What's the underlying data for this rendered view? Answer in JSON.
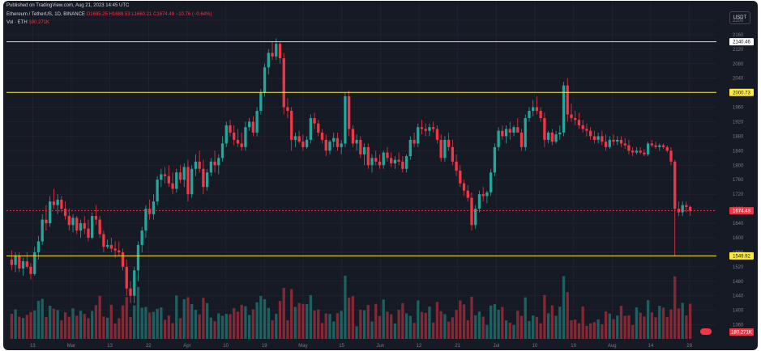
{
  "header": {
    "published": "Published on TradingView.com, Aug 21, 2023 14:45 UTC",
    "symbol": "Ethereum / TetherUS, 1D, BINANCE",
    "ohlc": "O1685.25 H1688.53 L1660.21 C1674.48 −10.76 (−0.64%)",
    "vol_label": "Vol · ETH",
    "vol_value": "180.271K"
  },
  "currency": "USDT",
  "colors": {
    "background": "#161a25",
    "up": "#26a69a",
    "down": "#f23645",
    "level_line_yellow": "#ffeb3b",
    "level_line_white": "#d1d4dc",
    "price_line": "#f23645",
    "grid": "#232632",
    "text": "#787b86"
  },
  "chart_data": {
    "type": "candlestick",
    "symbol": "Ethereum / TetherUS",
    "interval": "1D",
    "exchange": "BINANCE",
    "price_axis": {
      "ticks": [
        1360,
        1400,
        1440,
        1480,
        1520,
        1560,
        1600,
        1640,
        1680,
        1720,
        1760,
        1800,
        1840,
        1880,
        1920,
        1960,
        2000,
        2040,
        2080,
        2120,
        2160,
        2200
      ],
      "range": [
        1330,
        2220
      ]
    },
    "time_axis": {
      "labels": [
        "13",
        "Mar",
        "13",
        "22",
        "Apr",
        "10",
        "19",
        "May",
        "15",
        "Jun",
        "12",
        "21",
        "Jul",
        "10",
        "19",
        "Aug",
        "14",
        "28"
      ]
    },
    "horizontal_levels": [
      {
        "price": 2140.46,
        "label": "2140.46",
        "color": "white"
      },
      {
        "price": 2000.73,
        "label": "2000.73",
        "color": "yellow"
      },
      {
        "price": 1549.92,
        "label": "1549.92",
        "color": "yellow"
      }
    ],
    "last_price": {
      "value": 1674.48,
      "label": "1674.48"
    },
    "volume_last": {
      "label": "180.271K"
    },
    "grid": true,
    "candles": [
      [
        1540,
        1565,
        1510,
        1525
      ],
      [
        1525,
        1560,
        1505,
        1550
      ],
      [
        1550,
        1560,
        1505,
        1515
      ],
      [
        1515,
        1545,
        1495,
        1535
      ],
      [
        1535,
        1560,
        1515,
        1520
      ],
      [
        1520,
        1530,
        1485,
        1500
      ],
      [
        1500,
        1575,
        1495,
        1560
      ],
      [
        1560,
        1605,
        1540,
        1590
      ],
      [
        1590,
        1665,
        1580,
        1650
      ],
      [
        1650,
        1690,
        1620,
        1640
      ],
      [
        1640,
        1715,
        1630,
        1700
      ],
      [
        1700,
        1735,
        1680,
        1690
      ],
      [
        1690,
        1720,
        1665,
        1705
      ],
      [
        1705,
        1715,
        1670,
        1680
      ],
      [
        1680,
        1700,
        1650,
        1660
      ],
      [
        1660,
        1680,
        1620,
        1635
      ],
      [
        1635,
        1665,
        1615,
        1655
      ],
      [
        1655,
        1660,
        1610,
        1620
      ],
      [
        1620,
        1650,
        1600,
        1640
      ],
      [
        1640,
        1660,
        1610,
        1625
      ],
      [
        1625,
        1650,
        1590,
        1600
      ],
      [
        1600,
        1670,
        1595,
        1660
      ],
      [
        1660,
        1690,
        1635,
        1650
      ],
      [
        1650,
        1660,
        1600,
        1610
      ],
      [
        1610,
        1620,
        1560,
        1575
      ],
      [
        1575,
        1595,
        1570,
        1580
      ],
      [
        1580,
        1600,
        1560,
        1570
      ],
      [
        1570,
        1590,
        1545,
        1565
      ],
      [
        1565,
        1590,
        1550,
        1560
      ],
      [
        1560,
        1570,
        1510,
        1520
      ],
      [
        1520,
        1540,
        1440,
        1460
      ],
      [
        1460,
        1480,
        1420,
        1440
      ],
      [
        1440,
        1520,
        1420,
        1510
      ],
      [
        1510,
        1590,
        1480,
        1580
      ],
      [
        1580,
        1630,
        1560,
        1620
      ],
      [
        1620,
        1690,
        1600,
        1680
      ],
      [
        1680,
        1705,
        1650,
        1665
      ],
      [
        1665,
        1720,
        1650,
        1700
      ],
      [
        1700,
        1770,
        1690,
        1760
      ],
      [
        1760,
        1790,
        1740,
        1775
      ],
      [
        1775,
        1795,
        1750,
        1770
      ],
      [
        1770,
        1800,
        1740,
        1750
      ],
      [
        1750,
        1780,
        1720,
        1735
      ],
      [
        1735,
        1790,
        1725,
        1780
      ],
      [
        1780,
        1800,
        1750,
        1760
      ],
      [
        1760,
        1805,
        1740,
        1795
      ],
      [
        1795,
        1815,
        1700,
        1720
      ],
      [
        1720,
        1800,
        1710,
        1790
      ],
      [
        1790,
        1830,
        1770,
        1810
      ],
      [
        1810,
        1840,
        1780,
        1790
      ],
      [
        1790,
        1815,
        1720,
        1740
      ],
      [
        1740,
        1790,
        1730,
        1780
      ],
      [
        1780,
        1820,
        1770,
        1810
      ],
      [
        1810,
        1840,
        1780,
        1800
      ],
      [
        1800,
        1830,
        1775,
        1820
      ],
      [
        1820,
        1880,
        1810,
        1860
      ],
      [
        1860,
        1920,
        1850,
        1910
      ],
      [
        1910,
        1925,
        1880,
        1890
      ],
      [
        1890,
        1910,
        1855,
        1870
      ],
      [
        1870,
        1900,
        1850,
        1860
      ],
      [
        1860,
        1890,
        1840,
        1850
      ],
      [
        1850,
        1920,
        1840,
        1905
      ],
      [
        1905,
        1930,
        1895,
        1920
      ],
      [
        1920,
        1935,
        1880,
        1890
      ],
      [
        1890,
        1960,
        1880,
        1950
      ],
      [
        1950,
        2010,
        1940,
        2000
      ],
      [
        2000,
        2080,
        1990,
        2070
      ],
      [
        2070,
        2120,
        2050,
        2110
      ],
      [
        2110,
        2140,
        2090,
        2100
      ],
      [
        2100,
        2150,
        2090,
        2135
      ],
      [
        2135,
        2140,
        2080,
        2095
      ],
      [
        2095,
        2110,
        1940,
        1960
      ],
      [
        1960,
        1985,
        1930,
        1950
      ],
      [
        1950,
        1960,
        1840,
        1870
      ],
      [
        1870,
        1890,
        1850,
        1880
      ],
      [
        1880,
        1895,
        1860,
        1865
      ],
      [
        1865,
        1885,
        1840,
        1850
      ],
      [
        1850,
        1880,
        1845,
        1870
      ],
      [
        1870,
        1940,
        1860,
        1930
      ],
      [
        1930,
        1945,
        1900,
        1915
      ],
      [
        1915,
        1925,
        1880,
        1890
      ],
      [
        1890,
        1900,
        1860,
        1870
      ],
      [
        1870,
        1885,
        1825,
        1840
      ],
      [
        1840,
        1870,
        1830,
        1865
      ],
      [
        1865,
        1890,
        1850,
        1875
      ],
      [
        1875,
        1890,
        1840,
        1850
      ],
      [
        1850,
        1870,
        1830,
        1860
      ],
      [
        1860,
        2000,
        1850,
        1990
      ],
      [
        1990,
        2005,
        1880,
        1900
      ],
      [
        1900,
        1910,
        1850,
        1860
      ],
      [
        1860,
        1885,
        1840,
        1870
      ],
      [
        1870,
        1880,
        1820,
        1830
      ],
      [
        1830,
        1860,
        1800,
        1850
      ],
      [
        1850,
        1860,
        1790,
        1800
      ],
      [
        1800,
        1830,
        1780,
        1820
      ],
      [
        1820,
        1840,
        1800,
        1810
      ],
      [
        1810,
        1830,
        1790,
        1800
      ],
      [
        1800,
        1840,
        1790,
        1835
      ],
      [
        1835,
        1850,
        1810,
        1820
      ],
      [
        1820,
        1835,
        1795,
        1805
      ],
      [
        1805,
        1825,
        1790,
        1815
      ],
      [
        1815,
        1835,
        1800,
        1810
      ],
      [
        1810,
        1825,
        1780,
        1790
      ],
      [
        1790,
        1830,
        1780,
        1825
      ],
      [
        1825,
        1880,
        1815,
        1870
      ],
      [
        1870,
        1890,
        1850,
        1860
      ],
      [
        1860,
        1915,
        1850,
        1905
      ],
      [
        1905,
        1925,
        1885,
        1900
      ],
      [
        1900,
        1915,
        1880,
        1895
      ],
      [
        1895,
        1915,
        1880,
        1905
      ],
      [
        1905,
        1920,
        1890,
        1900
      ],
      [
        1900,
        1910,
        1860,
        1870
      ],
      [
        1870,
        1885,
        1810,
        1820
      ],
      [
        1820,
        1880,
        1810,
        1870
      ],
      [
        1870,
        1890,
        1840,
        1850
      ],
      [
        1850,
        1870,
        1800,
        1810
      ],
      [
        1810,
        1830,
        1770,
        1785
      ],
      [
        1785,
        1800,
        1740,
        1750
      ],
      [
        1750,
        1760,
        1715,
        1730
      ],
      [
        1730,
        1745,
        1700,
        1710
      ],
      [
        1710,
        1725,
        1620,
        1635
      ],
      [
        1635,
        1690,
        1625,
        1680
      ],
      [
        1680,
        1730,
        1670,
        1720
      ],
      [
        1720,
        1740,
        1700,
        1715
      ],
      [
        1715,
        1730,
        1695,
        1725
      ],
      [
        1725,
        1790,
        1715,
        1780
      ],
      [
        1780,
        1860,
        1770,
        1850
      ],
      [
        1850,
        1905,
        1840,
        1895
      ],
      [
        1895,
        1910,
        1870,
        1880
      ],
      [
        1880,
        1910,
        1860,
        1900
      ],
      [
        1900,
        1920,
        1870,
        1890
      ],
      [
        1890,
        1910,
        1880,
        1905
      ],
      [
        1905,
        1930,
        1890,
        1890
      ],
      [
        1890,
        1900,
        1840,
        1850
      ],
      [
        1850,
        1940,
        1840,
        1930
      ],
      [
        1930,
        1960,
        1920,
        1950
      ],
      [
        1950,
        1980,
        1935,
        1960
      ],
      [
        1960,
        1990,
        1940,
        1950
      ],
      [
        1950,
        1960,
        1920,
        1930
      ],
      [
        1930,
        1945,
        1850,
        1870
      ],
      [
        1870,
        1895,
        1860,
        1890
      ],
      [
        1890,
        1900,
        1855,
        1865
      ],
      [
        1865,
        1895,
        1860,
        1885
      ],
      [
        1885,
        1910,
        1870,
        1890
      ],
      [
        1890,
        2030,
        1880,
        2020
      ],
      [
        2020,
        2040,
        1920,
        1940
      ],
      [
        1940,
        1970,
        1920,
        1930
      ],
      [
        1930,
        1950,
        1910,
        1925
      ],
      [
        1925,
        1945,
        1900,
        1910
      ],
      [
        1910,
        1925,
        1890,
        1900
      ],
      [
        1900,
        1915,
        1880,
        1895
      ],
      [
        1895,
        1905,
        1870,
        1880
      ],
      [
        1880,
        1895,
        1860,
        1870
      ],
      [
        1870,
        1890,
        1860,
        1880
      ],
      [
        1880,
        1895,
        1855,
        1865
      ],
      [
        1865,
        1885,
        1840,
        1850
      ],
      [
        1850,
        1880,
        1845,
        1870
      ],
      [
        1870,
        1885,
        1855,
        1865
      ],
      [
        1865,
        1880,
        1855,
        1870
      ],
      [
        1870,
        1880,
        1850,
        1860
      ],
      [
        1860,
        1875,
        1845,
        1855
      ],
      [
        1855,
        1870,
        1830,
        1840
      ],
      [
        1840,
        1850,
        1825,
        1835
      ],
      [
        1835,
        1850,
        1830,
        1840
      ],
      [
        1840,
        1850,
        1830,
        1835
      ],
      [
        1835,
        1845,
        1825,
        1830
      ],
      [
        1830,
        1865,
        1825,
        1860
      ],
      [
        1860,
        1870,
        1850,
        1855
      ],
      [
        1855,
        1865,
        1845,
        1850
      ],
      [
        1850,
        1860,
        1840,
        1855
      ],
      [
        1855,
        1860,
        1845,
        1850
      ],
      [
        1850,
        1855,
        1835,
        1840
      ],
      [
        1840,
        1850,
        1800,
        1810
      ],
      [
        1810,
        1815,
        1550,
        1680
      ],
      [
        1680,
        1700,
        1660,
        1670
      ],
      [
        1670,
        1700,
        1660,
        1690
      ],
      [
        1690,
        1700,
        1670,
        1685
      ],
      [
        1685.25,
        1688.53,
        1660.21,
        1674.48
      ]
    ]
  }
}
